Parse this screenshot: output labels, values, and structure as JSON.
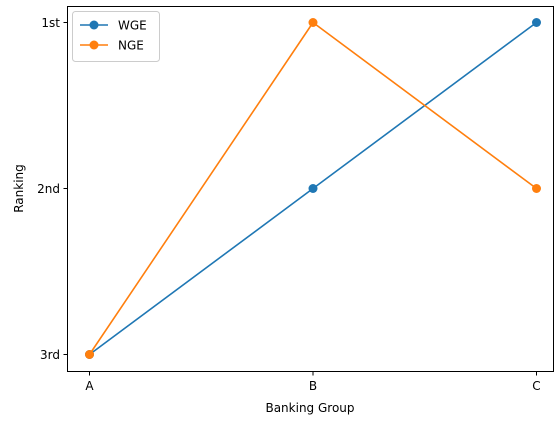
{
  "chart_data": {
    "type": "line",
    "categories": [
      "A",
      "B",
      "C"
    ],
    "xlabel": "Banking Group",
    "ylabel": "Ranking",
    "y_ticks": [
      {
        "value": 1,
        "label": "1st"
      },
      {
        "value": 2,
        "label": "2nd"
      },
      {
        "value": 3,
        "label": "3rd"
      }
    ],
    "y_inverted": true,
    "series": [
      {
        "name": "WGE",
        "values": [
          3,
          2,
          1
        ],
        "color": "#1f77b4"
      },
      {
        "name": "NGE",
        "values": [
          3,
          1,
          2
        ],
        "color": "#ff7f0e"
      }
    ],
    "legend_position": "top-left",
    "grid": false
  }
}
